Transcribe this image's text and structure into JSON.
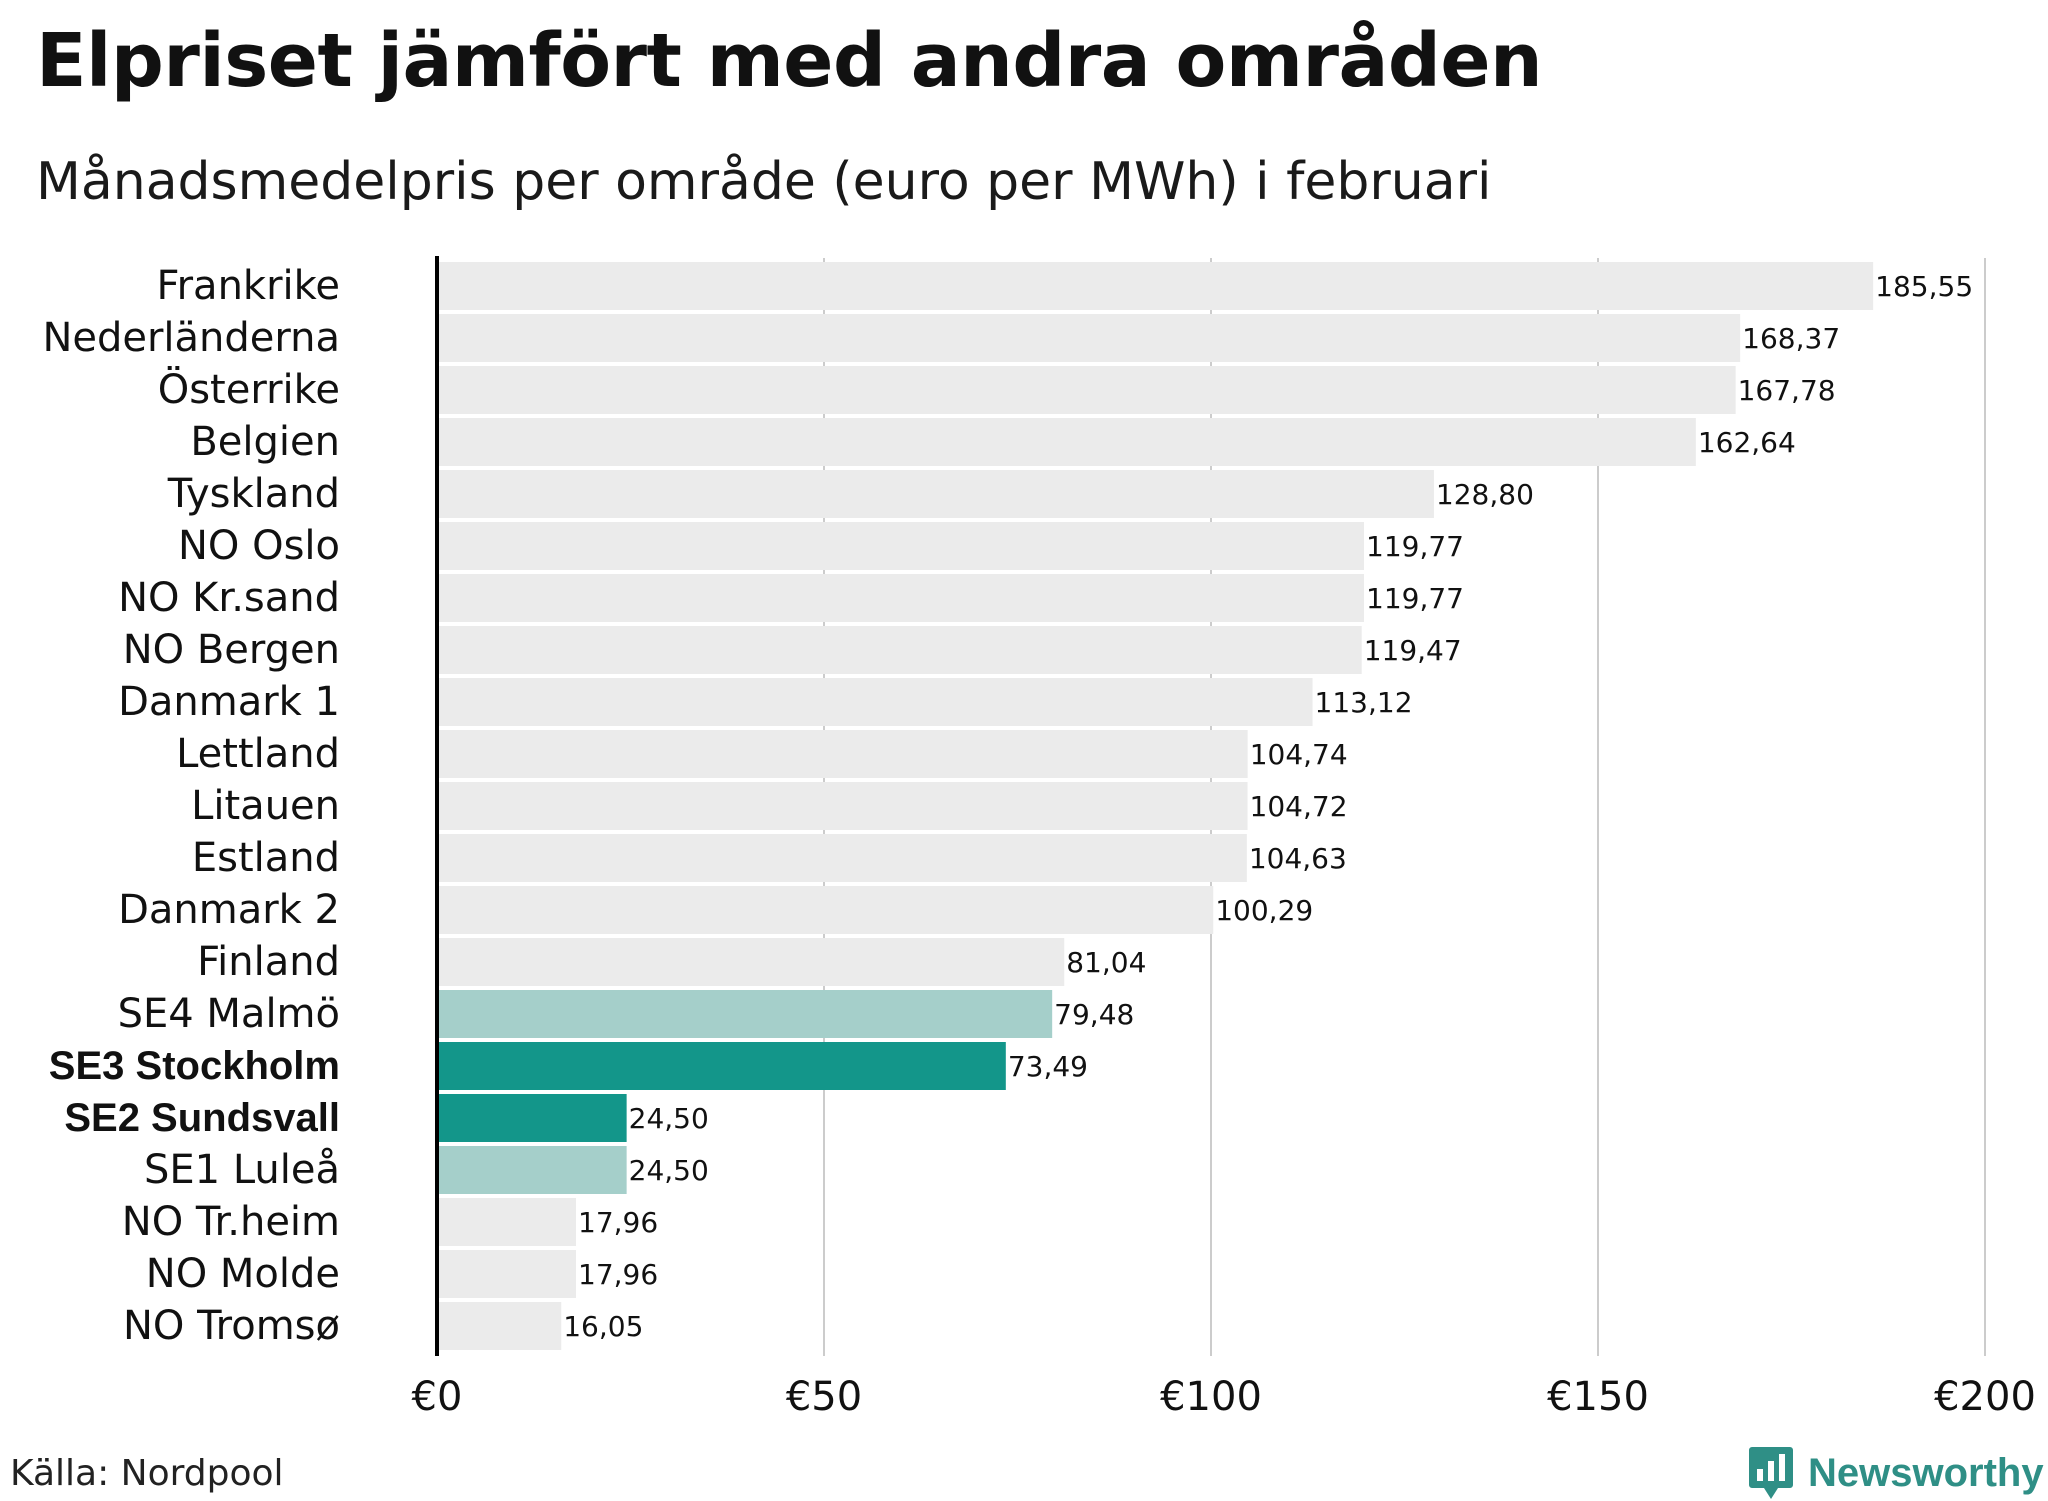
{
  "title": "Elpriset jämfört med andra områden",
  "subtitle": "Månadsmedelpris per område (euro per MWh) i februari",
  "source": "Källa: Nordpool",
  "logo_text": "Newsworthy",
  "colors": {
    "default_bar": "#ebebeb",
    "highlight_strong": "#13968a",
    "highlight_light": "#a5cfca",
    "grid": "#cccccc",
    "axis": "#000000"
  },
  "chart_data": {
    "type": "bar",
    "orientation": "horizontal",
    "title": "Elpriset jämfört med andra områden",
    "subtitle": "Månadsmedelpris per område (euro per MWh) i februari",
    "xlabel": "",
    "ylabel": "",
    "xlim": [
      0,
      200
    ],
    "x_ticks": [
      0,
      50,
      100,
      150,
      200
    ],
    "x_tick_labels": [
      "€0",
      "€50",
      "€100",
      "€150",
      "€200"
    ],
    "grid": true,
    "categories": [
      "Frankrike",
      "Nederländerna",
      "Österrike",
      "Belgien",
      "Tyskland",
      "NO Oslo",
      "NO Kr.sand",
      "NO Bergen",
      "Danmark 1",
      "Lettland",
      "Litauen",
      "Estland",
      "Danmark 2",
      "Finland",
      "SE4 Malmö",
      "SE3 Stockholm",
      "SE2 Sundsvall",
      "SE1 Luleå",
      "NO Tr.heim",
      "NO Molde",
      "NO Tromsø"
    ],
    "values": [
      185.55,
      168.37,
      167.78,
      162.64,
      128.8,
      119.77,
      119.77,
      119.47,
      113.12,
      104.74,
      104.72,
      104.63,
      100.29,
      81.04,
      79.48,
      73.49,
      24.5,
      24.5,
      17.96,
      17.96,
      16.05
    ],
    "value_labels": [
      "185,55",
      "168,37",
      "167,78",
      "162,64",
      "128,80",
      "119,77",
      "119,77",
      "119,47",
      "113,12",
      "104,74",
      "104,72",
      "104,63",
      "100,29",
      "81,04",
      "79,48",
      "73,49",
      "24,50",
      "24,50",
      "17,96",
      "17,96",
      "16,05"
    ],
    "highlight": [
      "none",
      "none",
      "none",
      "none",
      "none",
      "none",
      "none",
      "none",
      "none",
      "none",
      "none",
      "none",
      "none",
      "none",
      "light",
      "strong",
      "strong",
      "light",
      "none",
      "none",
      "none"
    ],
    "bold_labels": [
      "SE3 Stockholm",
      "SE2 Sundsvall"
    ]
  }
}
